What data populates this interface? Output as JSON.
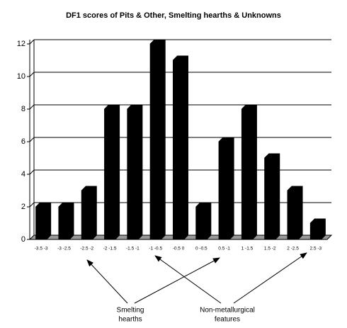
{
  "chart_data": {
    "type": "bar",
    "title": "DF1 scores of Pits & Other, Smelting hearths & Unknowns",
    "categories": [
      "-3.5 -3",
      "-3 -2.5",
      "-2.5 -2",
      "-2 -1.5",
      "-1.5 -1",
      "-1 -0.5",
      "-0.5 0",
      "0 -0.5",
      "0.5 -1",
      "1 -1.5",
      "1.5 -2",
      "2 -2.5",
      "2.5 -3"
    ],
    "values": [
      2,
      2,
      3,
      8,
      8,
      12,
      11,
      2,
      6,
      8,
      5,
      3,
      1
    ],
    "color": "#000000",
    "ylim": [
      0,
      12
    ],
    "yticks": [
      0,
      2,
      4,
      6,
      8,
      10,
      12
    ],
    "grid": true,
    "annotations": [
      {
        "lines": [
          "Smelting",
          "hearths"
        ]
      },
      {
        "lines": [
          "Non-metallurgical",
          "features"
        ]
      }
    ]
  }
}
